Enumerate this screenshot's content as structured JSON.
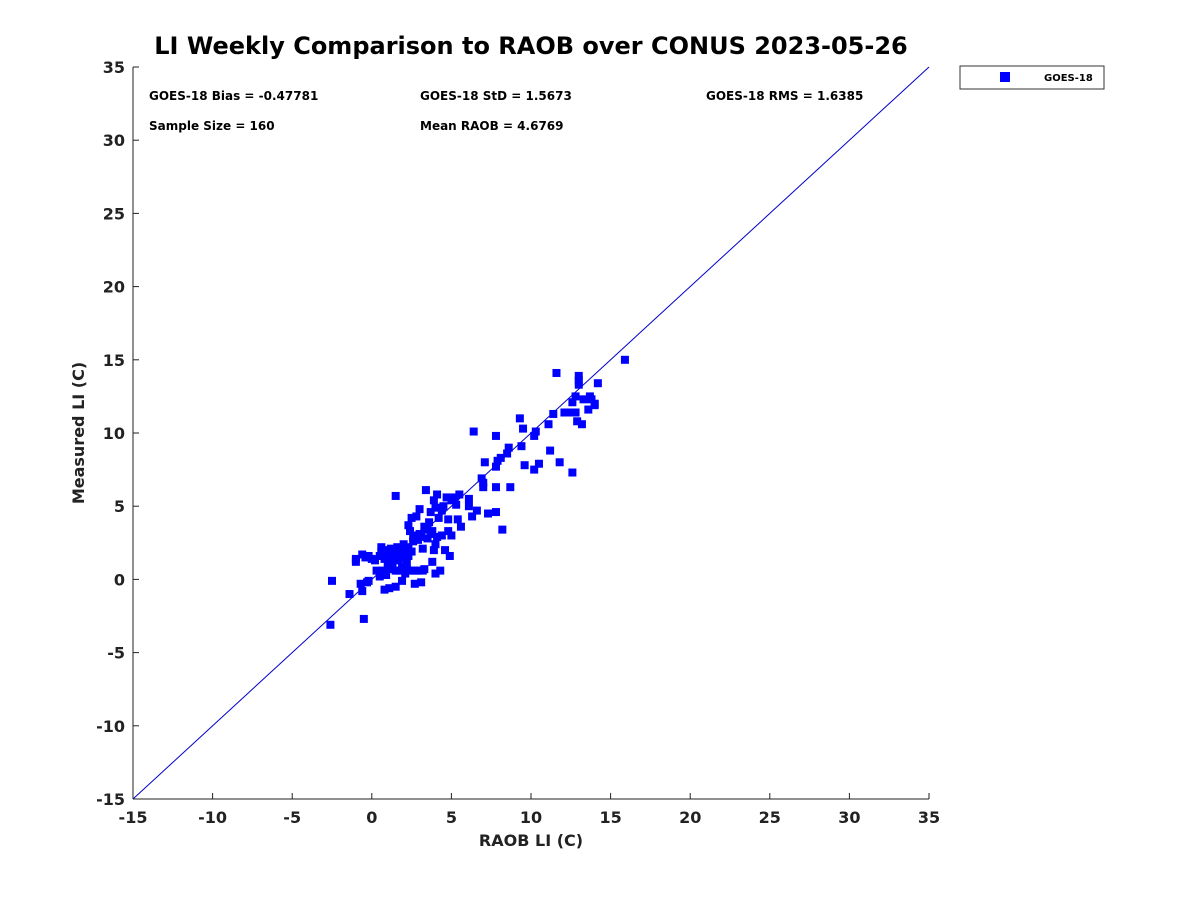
{
  "chart_data": {
    "type": "scatter",
    "title": "LI Weekly Comparison to RAOB over CONUS 2023-05-26",
    "xlabel": "RAOB LI (C)",
    "ylabel": "Measured LI (C)",
    "xlim": [
      -15,
      35
    ],
    "ylim": [
      -15,
      35
    ],
    "xticks": [
      "-15",
      "-10",
      "-5",
      "0",
      "5",
      "10",
      "15",
      "20",
      "25",
      "30",
      "35"
    ],
    "yticks": [
      "-15",
      "-10",
      "-5",
      "0",
      "5",
      "10",
      "15",
      "20",
      "25",
      "30",
      "35"
    ],
    "grid": false,
    "legend_position": "top-right, outside plot",
    "reference_line": {
      "label": "1:1 line",
      "color": "#0000cc",
      "from": [
        -15,
        -15
      ],
      "to": [
        35,
        35
      ]
    },
    "stats": {
      "bias": "GOES-18 Bias = -0.47781",
      "std": "GOES-18 StD = 1.5673",
      "rms": "GOES-18 RMS = 1.6385",
      "sample_size": "Sample Size = 160",
      "mean_raob": "Mean RAOB = 4.6769"
    },
    "series": [
      {
        "name": "GOES-18",
        "color": "#0000ff",
        "marker": "square",
        "points": [
          [
            -2.6,
            -3.1
          ],
          [
            -2.5,
            -0.1
          ],
          [
            -1.4,
            -1.0
          ],
          [
            -0.5,
            -2.7
          ],
          [
            -0.6,
            -0.8
          ],
          [
            -0.7,
            -0.3
          ],
          [
            -0.3,
            -0.2
          ],
          [
            -0.2,
            -0.1
          ],
          [
            -1.0,
            1.2
          ],
          [
            -1.0,
            1.4
          ],
          [
            -0.6,
            1.7
          ],
          [
            -0.4,
            1.5
          ],
          [
            -0.2,
            1.6
          ],
          [
            0.0,
            1.4
          ],
          [
            0.2,
            1.3
          ],
          [
            0.3,
            0.6
          ],
          [
            0.5,
            0.2
          ],
          [
            0.5,
            1.6
          ],
          [
            0.6,
            2.2
          ],
          [
            0.6,
            1.9
          ],
          [
            0.7,
            0.6
          ],
          [
            0.8,
            -0.7
          ],
          [
            0.8,
            1.4
          ],
          [
            0.9,
            2.0
          ],
          [
            0.9,
            0.3
          ],
          [
            1.0,
            1.0
          ],
          [
            1.0,
            1.6
          ],
          [
            1.1,
            -0.6
          ],
          [
            1.1,
            0.7
          ],
          [
            1.1,
            1.8
          ],
          [
            1.2,
            2.1
          ],
          [
            1.2,
            1.2
          ],
          [
            1.3,
            0.9
          ],
          [
            1.3,
            1.6
          ],
          [
            1.4,
            2.0
          ],
          [
            1.4,
            1.4
          ],
          [
            1.5,
            0.6
          ],
          [
            1.5,
            -0.5
          ],
          [
            1.5,
            5.7
          ],
          [
            1.6,
            1.8
          ],
          [
            1.6,
            2.2
          ],
          [
            1.7,
            0.6
          ],
          [
            1.7,
            1.3
          ],
          [
            1.8,
            1.9
          ],
          [
            1.8,
            2.0
          ],
          [
            1.9,
            0.8
          ],
          [
            1.9,
            -0.1
          ],
          [
            2.0,
            1.5
          ],
          [
            2.0,
            2.4
          ],
          [
            2.1,
            1.9
          ],
          [
            2.1,
            0.4
          ],
          [
            2.2,
            0.7
          ],
          [
            2.2,
            1.2
          ],
          [
            2.3,
            2.2
          ],
          [
            2.3,
            1.6
          ],
          [
            2.3,
            3.7
          ],
          [
            2.4,
            3.3
          ],
          [
            2.4,
            0.6
          ],
          [
            2.5,
            1.9
          ],
          [
            2.5,
            4.2
          ],
          [
            2.6,
            2.6
          ],
          [
            2.6,
            2.9
          ],
          [
            2.7,
            -0.3
          ],
          [
            2.7,
            0.6
          ],
          [
            2.8,
            4.3
          ],
          [
            2.8,
            3.0
          ],
          [
            2.9,
            2.7
          ],
          [
            2.9,
            0.6
          ],
          [
            3.0,
            3.1
          ],
          [
            3.0,
            4.8
          ],
          [
            3.1,
            -0.2
          ],
          [
            3.1,
            2.9
          ],
          [
            3.2,
            0.6
          ],
          [
            3.2,
            2.1
          ],
          [
            3.3,
            3.6
          ],
          [
            3.3,
            0.7
          ],
          [
            3.4,
            6.1
          ],
          [
            3.5,
            3.4
          ],
          [
            3.5,
            2.8
          ],
          [
            3.6,
            3.9
          ],
          [
            3.7,
            3.1
          ],
          [
            3.7,
            4.6
          ],
          [
            3.8,
            1.2
          ],
          [
            3.8,
            3.3
          ],
          [
            3.9,
            5.4
          ],
          [
            3.9,
            2.0
          ],
          [
            4.0,
            2.4
          ],
          [
            4.0,
            4.9
          ],
          [
            4.0,
            0.4
          ],
          [
            4.1,
            2.9
          ],
          [
            4.1,
            5.8
          ],
          [
            4.2,
            4.2
          ],
          [
            4.3,
            0.6
          ],
          [
            4.4,
            3.0
          ],
          [
            4.4,
            4.7
          ],
          [
            4.5,
            5.0
          ],
          [
            4.6,
            2.0
          ],
          [
            4.7,
            5.6
          ],
          [
            4.8,
            4.1
          ],
          [
            4.8,
            3.3
          ],
          [
            4.9,
            1.6
          ],
          [
            5.0,
            5.4
          ],
          [
            5.0,
            3.0
          ],
          [
            5.2,
            5.6
          ],
          [
            5.3,
            5.1
          ],
          [
            5.4,
            4.1
          ],
          [
            5.5,
            5.8
          ],
          [
            5.6,
            3.6
          ],
          [
            6.1,
            5.5
          ],
          [
            6.1,
            5.0
          ],
          [
            6.3,
            4.3
          ],
          [
            6.4,
            10.1
          ],
          [
            6.6,
            4.7
          ],
          [
            6.9,
            6.9
          ],
          [
            7.0,
            6.3
          ],
          [
            7.0,
            6.6
          ],
          [
            7.1,
            8.0
          ],
          [
            7.3,
            4.5
          ],
          [
            7.8,
            9.8
          ],
          [
            7.8,
            7.7
          ],
          [
            7.8,
            6.3
          ],
          [
            7.8,
            4.6
          ],
          [
            7.9,
            8.1
          ],
          [
            8.1,
            8.3
          ],
          [
            8.2,
            3.4
          ],
          [
            8.5,
            8.6
          ],
          [
            8.6,
            9.0
          ],
          [
            8.7,
            6.3
          ],
          [
            9.3,
            11.0
          ],
          [
            9.4,
            9.1
          ],
          [
            9.5,
            10.3
          ],
          [
            9.6,
            7.8
          ],
          [
            10.2,
            9.8
          ],
          [
            10.2,
            7.5
          ],
          [
            10.3,
            10.1
          ],
          [
            10.5,
            7.9
          ],
          [
            11.1,
            10.6
          ],
          [
            11.2,
            8.8
          ],
          [
            11.4,
            11.3
          ],
          [
            11.6,
            14.1
          ],
          [
            11.8,
            8.0
          ],
          [
            12.1,
            11.4
          ],
          [
            12.5,
            11.4
          ],
          [
            12.6,
            12.1
          ],
          [
            12.6,
            7.3
          ],
          [
            12.8,
            11.4
          ],
          [
            12.8,
            12.5
          ],
          [
            12.9,
            10.8
          ],
          [
            13.0,
            13.3
          ],
          [
            13.0,
            13.6
          ],
          [
            13.0,
            13.9
          ],
          [
            13.2,
            10.6
          ],
          [
            13.3,
            12.3
          ],
          [
            13.6,
            11.6
          ],
          [
            13.7,
            12.5
          ],
          [
            13.8,
            12.3
          ],
          [
            14.0,
            11.9
          ],
          [
            14.2,
            13.4
          ],
          [
            14.0,
            12.0
          ],
          [
            15.9,
            15.0
          ]
        ]
      }
    ]
  }
}
